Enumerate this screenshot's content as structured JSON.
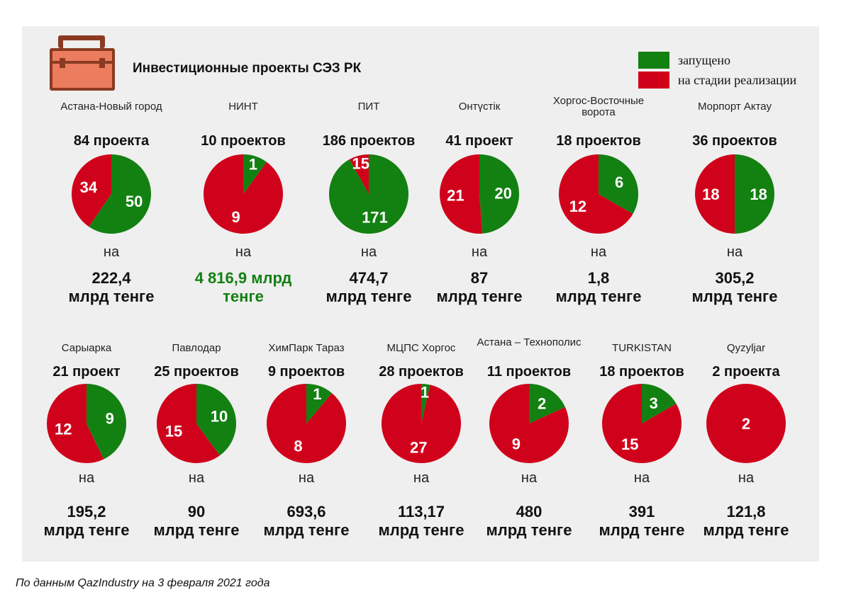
{
  "title": "Инвестиционные проекты СЭЗ РК",
  "legend": [
    {
      "label": "запущено",
      "color": "#138012"
    },
    {
      "label": "на стадии реализации",
      "color": "#d0021b"
    }
  ],
  "colors": {
    "launched": "#138012",
    "in_progress": "#d0021b",
    "highlight_text": "#138012"
  },
  "icons": {
    "header": "briefcase-icon"
  },
  "on_word": "на",
  "source": "По данным QazIndustry на 3 февраля 2021 года",
  "chart_data": {
    "type": "pie",
    "series_names": [
      "запущено",
      "на стадии реализации"
    ],
    "zones": [
      {
        "name": "Астана-Новый город",
        "count_label": "84 проекта",
        "launched": 50,
        "in_progress": 34,
        "amount": "222,4",
        "unit": "млрд тенге"
      },
      {
        "name": "НИНТ",
        "count_label": "10 проектов",
        "launched": 1,
        "in_progress": 9,
        "amount": "4 816,9 млрд",
        "unit": "тенге",
        "highlight": true
      },
      {
        "name": "ПИТ",
        "count_label": "186 проектов",
        "launched": 171,
        "in_progress": 15,
        "amount": "474,7",
        "unit": "млрд тенге"
      },
      {
        "name": "Онтүстік",
        "count_label": "41 проект",
        "launched": 20,
        "in_progress": 21,
        "amount": "87",
        "unit": "млрд тенге"
      },
      {
        "name": "Хоргос-Восточные ворота",
        "count_label": "18 проектов",
        "launched": 6,
        "in_progress": 12,
        "amount": "1,8",
        "unit": "млрд тенге"
      },
      {
        "name": "Морпорт Актау",
        "count_label": "36 проектов",
        "launched": 18,
        "in_progress": 18,
        "amount": "305,2",
        "unit": "млрд тенге"
      },
      {
        "name": "Сарыарка",
        "count_label": "21 проект",
        "launched": 9,
        "in_progress": 12,
        "amount": "195,2",
        "unit": "млрд тенге"
      },
      {
        "name": "Павлодар",
        "count_label": "25 проектов",
        "launched": 10,
        "in_progress": 15,
        "amount": "90",
        "unit": "млрд тенге"
      },
      {
        "name": "ХимПарк Тараз",
        "count_label": "9 проектов",
        "launched": 1,
        "in_progress": 8,
        "amount": "693,6",
        "unit": "млрд тенге"
      },
      {
        "name": "МЦПС Хоргос",
        "count_label": "28 проектов",
        "launched": 1,
        "in_progress": 27,
        "amount": "113,17",
        "unit": "млрд тенге"
      },
      {
        "name": "Астана – Технополис",
        "count_label": "11 проектов",
        "launched": 2,
        "in_progress": 9,
        "amount": "480",
        "unit": "млрд тенге"
      },
      {
        "name": "TURKISTAN",
        "count_label": "18 проектов",
        "launched": 3,
        "in_progress": 15,
        "amount": "391",
        "unit": "млрд тенге"
      },
      {
        "name": "Qyzyljar",
        "count_label": "2 проекта",
        "launched": 0,
        "in_progress": 2,
        "amount": "121,8",
        "unit": "млрд тенге"
      }
    ]
  }
}
